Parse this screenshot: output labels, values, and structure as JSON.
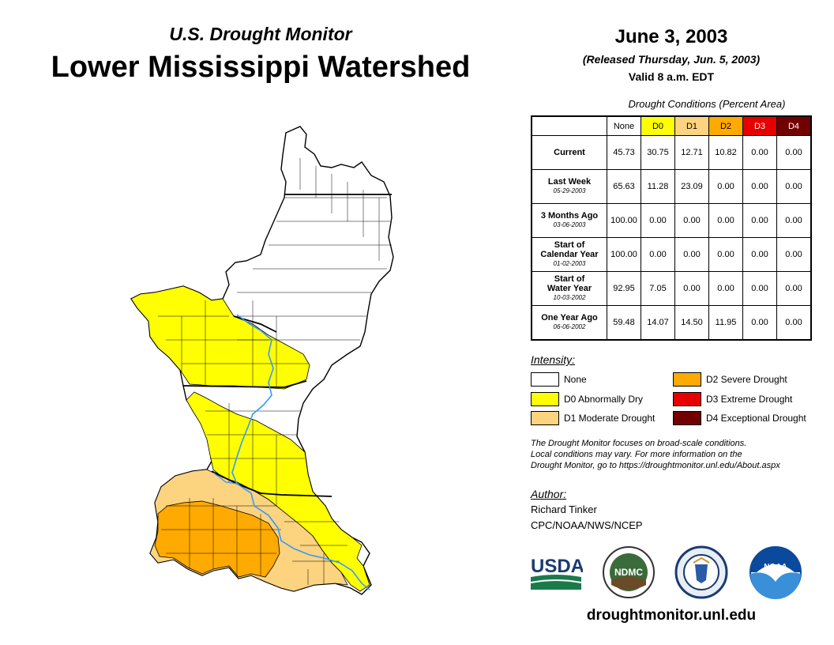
{
  "header": {
    "subtitle": "U.S. Drought Monitor",
    "title": "Lower Mississippi Watershed",
    "date": "June 3, 2003",
    "released": "(Released Thursday, Jun. 5, 2003)",
    "valid": "Valid 8 a.m. EDT"
  },
  "table": {
    "title": "Drought Conditions (Percent Area)",
    "columns": [
      "None",
      "D0",
      "D1",
      "D2",
      "D3",
      "D4"
    ],
    "rows": [
      {
        "label": "Current",
        "label2": "",
        "sub": "",
        "values": [
          "45.73",
          "30.75",
          "12.71",
          "10.82",
          "0.00",
          "0.00"
        ]
      },
      {
        "label": "Last Week",
        "label2": "",
        "sub": "05-29-2003",
        "values": [
          "65.63",
          "11.28",
          "23.09",
          "0.00",
          "0.00",
          "0.00"
        ]
      },
      {
        "label": "3 Months Ago",
        "label2": "",
        "sub": "03-06-2003",
        "values": [
          "100.00",
          "0.00",
          "0.00",
          "0.00",
          "0.00",
          "0.00"
        ]
      },
      {
        "label": "Start of",
        "label2": "Calendar Year",
        "sub": "01-02-2003",
        "values": [
          "100.00",
          "0.00",
          "0.00",
          "0.00",
          "0.00",
          "0.00"
        ]
      },
      {
        "label": "Start of",
        "label2": "Water Year",
        "sub": "10-03-2002",
        "values": [
          "92.95",
          "7.05",
          "0.00",
          "0.00",
          "0.00",
          "0.00"
        ]
      },
      {
        "label": "One Year Ago",
        "label2": "",
        "sub": "06-06-2002",
        "values": [
          "59.48",
          "14.07",
          "14.50",
          "11.95",
          "0.00",
          "0.00"
        ]
      }
    ]
  },
  "legend": {
    "title": "Intensity:",
    "items": [
      {
        "label": "None",
        "color": "#ffffff"
      },
      {
        "label": "D0 Abnormally Dry",
        "color": "#ffff00"
      },
      {
        "label": "D1 Moderate Drought",
        "color": "#fcd37f"
      },
      {
        "label": "D2 Severe Drought",
        "color": "#ffaa00"
      },
      {
        "label": "D3 Extreme Drought",
        "color": "#e60000"
      },
      {
        "label": "D4 Exceptional Drought",
        "color": "#730000"
      }
    ]
  },
  "note": {
    "line1": "The Drought Monitor focuses on broad-scale conditions.",
    "line2": "Local conditions may vary. For more information on the",
    "line3": "Drought Monitor, go to https://droughtmonitor.unl.edu/About.aspx"
  },
  "author": {
    "title": "Author:",
    "name": "Richard Tinker",
    "org": "CPC/NOAA/NWS/NCEP"
  },
  "logos": {
    "usda": "USDA",
    "ndmc": "NDMC",
    "noaa": "NOAA"
  },
  "website": "droughtmonitor.unl.edu",
  "colors": {
    "none": "#ffffff",
    "d0": "#ffff00",
    "d1": "#fcd37f",
    "d2": "#ffaa00",
    "d3": "#e60000",
    "d4": "#730000",
    "river": "#3399ff"
  }
}
